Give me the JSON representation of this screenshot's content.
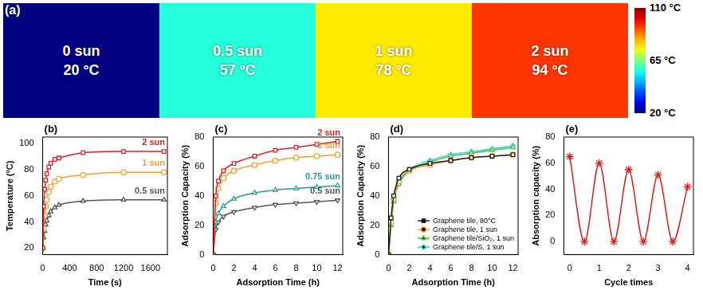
{
  "chart_data": [
    {
      "type": "thermal_image",
      "panel": "(a)",
      "categories": [
        "0 sun",
        "0.5 sun",
        "1 sun",
        "2 sun"
      ],
      "values": [
        20,
        57,
        78,
        94
      ],
      "value_labels": [
        "20 °C",
        "57 °C",
        "78 °C",
        "94 °C"
      ],
      "colorbar": {
        "range": [
          20,
          110
        ],
        "ticks": [
          {
            "value": 20,
            "label": "20 °C"
          },
          {
            "value": 65,
            "label": "65 °C"
          },
          {
            "value": 110,
            "label": "110 °C"
          }
        ]
      }
    },
    {
      "type": "line",
      "panel": "(b)",
      "x_label": "Time (s)",
      "y_label": "Temperature (°C)",
      "grid": false,
      "x": [
        0,
        15,
        30,
        45,
        60,
        90,
        120,
        180,
        240,
        600,
        1200,
        1800
      ],
      "xlim": [
        0,
        1850
      ],
      "xticks": [
        0,
        400,
        800,
        1200,
        1600
      ],
      "ylim": [
        15,
        105
      ],
      "yticks": [
        20,
        40,
        60,
        80,
        100
      ],
      "series": [
        {
          "name": "2 sun",
          "color": "#e02020",
          "marker": "square",
          "values": [
            20,
            52,
            65,
            72,
            77,
            82,
            85,
            88,
            89,
            93,
            94,
            94
          ]
        },
        {
          "name": "1 sun",
          "color": "#f0a030",
          "marker": "circle",
          "values": [
            20,
            35,
            45,
            52,
            57,
            63,
            67,
            71,
            73,
            76,
            78,
            78
          ]
        },
        {
          "name": "0.5 sun",
          "color": "#555555",
          "marker": "triangle",
          "values": [
            20,
            28,
            33,
            38,
            41,
            45,
            48,
            51,
            53,
            56,
            57,
            57
          ]
        }
      ]
    },
    {
      "type": "line",
      "panel": "(c)",
      "x_label": "Adsorption Time (h)",
      "y_label": "Adsorption Capacity (%)",
      "grid": false,
      "x": [
        0,
        0.25,
        0.5,
        1,
        2,
        4,
        6,
        8,
        10,
        12
      ],
      "xlim": [
        0,
        12.5
      ],
      "xticks": [
        0,
        2,
        4,
        6,
        8,
        10,
        12
      ],
      "ylim": [
        0,
        80
      ],
      "yticks": [
        0,
        20,
        40,
        60,
        80
      ],
      "series": [
        {
          "name": "2 sun",
          "color": "#e02020",
          "marker": "square",
          "values": [
            0,
            40,
            50,
            57,
            62,
            67,
            71,
            73,
            75,
            77
          ]
        },
        {
          "name": "1 sun",
          "color": "#f0a030",
          "marker": "circle",
          "values": [
            0,
            35,
            45,
            52,
            57,
            61,
            64,
            66,
            67,
            68
          ]
        },
        {
          "name": "0.75 sun",
          "color": "#2a9a9a",
          "marker": "triangle",
          "values": [
            0,
            22,
            28,
            33,
            38,
            42,
            44,
            45,
            46,
            47
          ]
        },
        {
          "name": "0.5 sun",
          "color": "#555555",
          "marker": "triangle_down",
          "values": [
            0,
            17,
            22,
            26,
            29,
            32,
            34,
            35,
            36,
            37
          ]
        }
      ]
    },
    {
      "type": "line",
      "panel": "(d)",
      "x_label": "Adsorption Time (h)",
      "y_label": "Adsorption Capacity (%)",
      "grid": false,
      "legend": "lower right",
      "x": [
        0,
        0.25,
        0.5,
        1,
        2,
        4,
        6,
        8,
        10,
        12
      ],
      "xlim": [
        0,
        12.5
      ],
      "xticks": [
        0,
        2,
        4,
        6,
        8,
        10,
        12
      ],
      "ylim": [
        0,
        80
      ],
      "yticks": [
        0,
        20,
        40,
        60,
        80
      ],
      "series": [
        {
          "name": "Graphene tile, 80°C",
          "color": "#222222",
          "marker": "square",
          "values": [
            0,
            25,
            40,
            52,
            58,
            62,
            64,
            66,
            67,
            68
          ]
        },
        {
          "name": "Graphene tile, 1 sun",
          "color": "#f0a030",
          "marker": "circle",
          "values": [
            0,
            22,
            38,
            50,
            57,
            61,
            64,
            66,
            67,
            68
          ]
        },
        {
          "name": "Graphene tile/SiO₂, 1 sun",
          "color": "#40c040",
          "marker": "triangle",
          "values": [
            0,
            20,
            36,
            48,
            57,
            63,
            67,
            69,
            71,
            73
          ]
        },
        {
          "name": "Graphene tile/S, 1 sun",
          "color": "#30d0e0",
          "marker": "diamond",
          "values": [
            0,
            21,
            37,
            49,
            58,
            64,
            68,
            70,
            72,
            74
          ]
        }
      ]
    },
    {
      "type": "line",
      "panel": "(e)",
      "x_label": "Cycle times",
      "y_label": "Absorption capacity (%)",
      "grid": false,
      "x": [
        0,
        0.5,
        1,
        1.5,
        2,
        2.5,
        3,
        3.5,
        4
      ],
      "xlim": [
        -0.2,
        4.2
      ],
      "xticks": [
        0,
        1,
        2,
        3,
        4
      ],
      "ylim": [
        -10,
        80
      ],
      "yticks": [
        0,
        20,
        40,
        60,
        80
      ],
      "series": [
        {
          "color": "#d62020",
          "marker": "star",
          "values": [
            65,
            0,
            60,
            0,
            55,
            0,
            51,
            0,
            42
          ]
        }
      ]
    }
  ]
}
